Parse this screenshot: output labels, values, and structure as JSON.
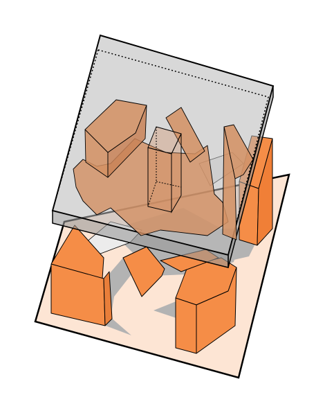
{
  "diagram": {
    "kind": "axonometric-building-massing",
    "palette": {
      "background": "#ffffff",
      "site_plane": "#fde5d4",
      "building": "#f58d47",
      "building_translucent": "#d9a07d",
      "shadow": "#b3b3b3",
      "light_face": "#e9e9e9",
      "glass_plane": "#cccccc",
      "outline": "#000000"
    },
    "layers": [
      {
        "name": "site-ground-plane",
        "icon": "parallelogram"
      },
      {
        "name": "shadow-layer",
        "icon": "polygon"
      },
      {
        "name": "building-masses",
        "icon": "extruded-prism"
      },
      {
        "name": "translucent-roof-plane",
        "icon": "slab"
      }
    ]
  }
}
